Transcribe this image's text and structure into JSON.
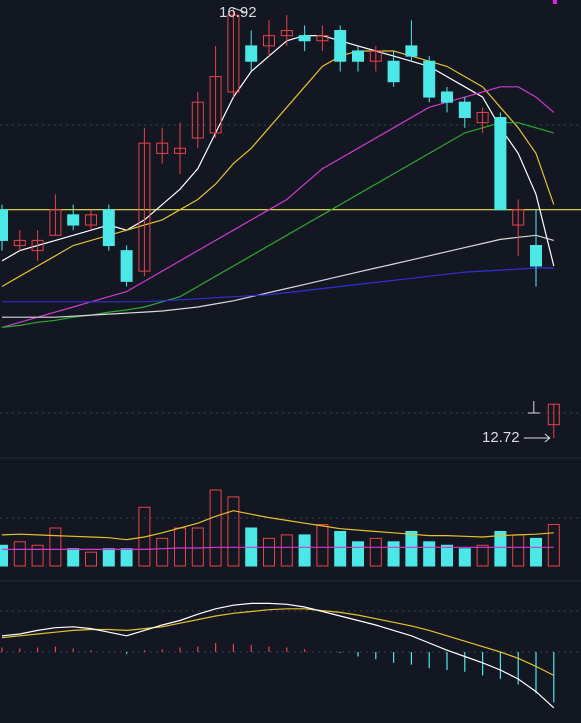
{
  "chart_data": [
    {
      "type": "candlestick",
      "panel": "price",
      "annotations": {
        "high": "16.92",
        "low": "12.72"
      },
      "reference_line": 14.95,
      "candles": [
        {
          "o": 14.95,
          "c": 14.65,
          "h": 15.0,
          "l": 14.55
        },
        {
          "o": 14.6,
          "c": 14.65,
          "h": 14.75,
          "l": 14.55
        },
        {
          "o": 14.55,
          "c": 14.65,
          "h": 14.75,
          "l": 14.45
        },
        {
          "o": 14.7,
          "c": 14.95,
          "h": 15.1,
          "l": 14.7
        },
        {
          "o": 14.9,
          "c": 14.8,
          "h": 15.0,
          "l": 14.75
        },
        {
          "o": 14.8,
          "c": 14.9,
          "h": 14.95,
          "l": 14.75
        },
        {
          "o": 14.95,
          "c": 14.6,
          "h": 15.0,
          "l": 14.55
        },
        {
          "o": 14.55,
          "c": 14.25,
          "h": 14.6,
          "l": 14.2
        },
        {
          "o": 14.35,
          "c": 15.6,
          "h": 15.75,
          "l": 14.3
        },
        {
          "o": 15.5,
          "c": 15.6,
          "h": 15.75,
          "l": 15.4
        },
        {
          "o": 15.5,
          "c": 15.55,
          "h": 15.8,
          "l": 15.3
        },
        {
          "o": 15.65,
          "c": 16.0,
          "h": 16.1,
          "l": 15.55
        },
        {
          "o": 15.7,
          "c": 16.25,
          "h": 16.55,
          "l": 15.65
        },
        {
          "o": 16.1,
          "c": 16.85,
          "h": 16.92,
          "l": 16.05
        },
        {
          "o": 16.55,
          "c": 16.4,
          "h": 16.7,
          "l": 16.3
        },
        {
          "o": 16.55,
          "c": 16.65,
          "h": 16.8,
          "l": 16.45
        },
        {
          "o": 16.65,
          "c": 16.7,
          "h": 16.85,
          "l": 16.55
        },
        {
          "o": 16.65,
          "c": 16.6,
          "h": 16.75,
          "l": 16.5
        },
        {
          "o": 16.6,
          "c": 16.65,
          "h": 16.75,
          "l": 16.5
        },
        {
          "o": 16.7,
          "c": 16.4,
          "h": 16.75,
          "l": 16.3
        },
        {
          "o": 16.5,
          "c": 16.4,
          "h": 16.55,
          "l": 16.3
        },
        {
          "o": 16.4,
          "c": 16.5,
          "h": 16.55,
          "l": 16.3
        },
        {
          "o": 16.4,
          "c": 16.2,
          "h": 16.5,
          "l": 16.15
        },
        {
          "o": 16.55,
          "c": 16.45,
          "h": 16.8,
          "l": 16.4
        },
        {
          "o": 16.4,
          "c": 16.05,
          "h": 16.45,
          "l": 16.0
        },
        {
          "o": 16.1,
          "c": 16.0,
          "h": 16.15,
          "l": 15.9
        },
        {
          "o": 16.0,
          "c": 15.85,
          "h": 16.05,
          "l": 15.75
        },
        {
          "o": 15.8,
          "c": 15.9,
          "h": 15.95,
          "l": 15.7
        },
        {
          "o": 15.85,
          "c": 14.95,
          "h": 15.9,
          "l": 14.95
        },
        {
          "o": 14.8,
          "c": 14.95,
          "h": 15.05,
          "l": 14.5
        },
        {
          "o": 14.6,
          "c": 14.4,
          "h": 14.95,
          "l": 14.2
        },
        {
          "o": 12.85,
          "c": 13.05,
          "h": 13.05,
          "l": 12.72
        }
      ],
      "ma": [
        {
          "color": "#ffffff",
          "values": [
            14.45,
            14.55,
            14.6,
            14.65,
            14.7,
            14.75,
            14.8,
            14.75,
            14.85,
            15.0,
            15.15,
            15.35,
            15.7,
            16.05,
            16.3,
            16.45,
            16.6,
            16.65,
            16.65,
            16.6,
            16.55,
            16.5,
            16.45,
            16.4,
            16.35,
            16.25,
            16.15,
            16.05,
            15.75,
            15.5,
            15.1,
            14.4
          ]
        },
        {
          "color": "#e6c02a",
          "values": [
            14.2,
            14.3,
            14.4,
            14.5,
            14.6,
            14.65,
            14.7,
            14.75,
            14.8,
            14.85,
            14.95,
            15.05,
            15.2,
            15.4,
            15.55,
            15.75,
            15.95,
            16.15,
            16.35,
            16.45,
            16.5,
            16.5,
            16.5,
            16.45,
            16.4,
            16.35,
            16.25,
            16.15,
            15.95,
            15.75,
            15.5,
            15.0
          ]
        },
        {
          "color": "#d03ad0",
          "values": [
            13.8,
            13.85,
            13.9,
            13.95,
            14.0,
            14.05,
            14.1,
            14.15,
            14.25,
            14.35,
            14.45,
            14.55,
            14.65,
            14.75,
            14.85,
            14.95,
            15.05,
            15.2,
            15.35,
            15.45,
            15.55,
            15.65,
            15.75,
            15.85,
            15.95,
            16.0,
            16.05,
            16.1,
            16.15,
            16.15,
            16.05,
            15.9
          ]
        },
        {
          "color": "#2ea82e",
          "values": [
            13.8,
            13.82,
            13.85,
            13.87,
            13.9,
            13.92,
            13.95,
            13.97,
            14.0,
            14.05,
            14.1,
            14.2,
            14.3,
            14.4,
            14.5,
            14.6,
            14.7,
            14.8,
            14.9,
            15.0,
            15.1,
            15.2,
            15.3,
            15.4,
            15.5,
            15.6,
            15.7,
            15.75,
            15.8,
            15.8,
            15.75,
            15.7
          ]
        },
        {
          "color": "#d8d8d8",
          "values": [
            13.9,
            13.9,
            13.9,
            13.9,
            13.91,
            13.92,
            13.93,
            13.94,
            13.95,
            13.96,
            13.98,
            14.0,
            14.03,
            14.06,
            14.1,
            14.14,
            14.18,
            14.22,
            14.26,
            14.3,
            14.34,
            14.38,
            14.42,
            14.46,
            14.5,
            14.54,
            14.58,
            14.62,
            14.66,
            14.68,
            14.7,
            14.65
          ]
        },
        {
          "color": "#2f2fd8",
          "values": [
            14.05,
            14.05,
            14.05,
            14.05,
            14.05,
            14.05,
            14.05,
            14.05,
            14.05,
            14.06,
            14.07,
            14.08,
            14.09,
            14.1,
            14.11,
            14.12,
            14.14,
            14.16,
            14.18,
            14.2,
            14.22,
            14.24,
            14.26,
            14.28,
            14.3,
            14.32,
            14.34,
            14.35,
            14.36,
            14.37,
            14.38,
            14.38
          ]
        }
      ]
    },
    {
      "type": "bar",
      "panel": "volume",
      "values": [
        30,
        35,
        30,
        55,
        25,
        20,
        25,
        25,
        85,
        40,
        55,
        55,
        110,
        100,
        55,
        40,
        45,
        45,
        60,
        50,
        35,
        40,
        35,
        50,
        35,
        30,
        25,
        30,
        50,
        45,
        40,
        60
      ],
      "ma": [
        {
          "color": "#e6c02a",
          "values": [
            45,
            46,
            45,
            44,
            43,
            42,
            41,
            38,
            42,
            48,
            55,
            62,
            72,
            80,
            75,
            70,
            66,
            62,
            58,
            54,
            52,
            50,
            48,
            46,
            44,
            44,
            43,
            42,
            44,
            45,
            46,
            48
          ]
        },
        {
          "color": "#d03ad0",
          "values": [
            24,
            24,
            24,
            24,
            24,
            24,
            24,
            24,
            24,
            25,
            26,
            26,
            27,
            27,
            27,
            27,
            27,
            27,
            27,
            27,
            27,
            27,
            27,
            27,
            27,
            27,
            27,
            27,
            27,
            27,
            27,
            27
          ]
        }
      ]
    },
    {
      "type": "macd",
      "panel": "macd",
      "dif": [
        0.18,
        0.2,
        0.24,
        0.27,
        0.28,
        0.26,
        0.22,
        0.18,
        0.24,
        0.3,
        0.35,
        0.42,
        0.48,
        0.52,
        0.54,
        0.54,
        0.53,
        0.5,
        0.45,
        0.4,
        0.35,
        0.3,
        0.24,
        0.18,
        0.1,
        0.02,
        -0.05,
        -0.12,
        -0.2,
        -0.3,
        -0.44,
        -0.62
      ],
      "dea": [
        0.16,
        0.18,
        0.2,
        0.22,
        0.24,
        0.25,
        0.25,
        0.24,
        0.26,
        0.28,
        0.32,
        0.36,
        0.4,
        0.43,
        0.45,
        0.47,
        0.48,
        0.48,
        0.46,
        0.44,
        0.41,
        0.37,
        0.33,
        0.29,
        0.24,
        0.18,
        0.12,
        0.06,
        0.0,
        -0.07,
        -0.16,
        -0.26
      ],
      "histogram": [
        0.05,
        0.04,
        0.05,
        0.06,
        0.04,
        0.02,
        0.0,
        -0.02,
        0.02,
        0.03,
        0.05,
        0.06,
        0.1,
        0.09,
        0.08,
        0.06,
        0.05,
        0.03,
        0.0,
        -0.01,
        -0.05,
        -0.08,
        -0.12,
        -0.14,
        -0.18,
        -0.2,
        -0.22,
        -0.26,
        -0.3,
        -0.36,
        -0.46,
        -0.56
      ]
    }
  ]
}
